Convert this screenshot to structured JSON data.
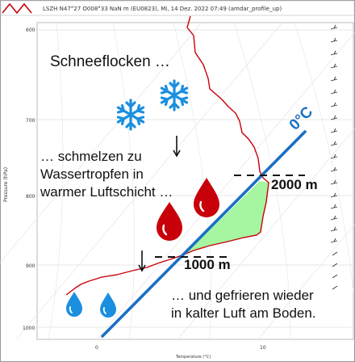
{
  "header": {
    "title": "LSZH N47°27 O008°33 NaN m (EU0823), Mi, 14 Dez. 2022 07:49 (amdar_profile_up)"
  },
  "axes": {
    "ylabel": "Pressure (hPa)",
    "xlabel": "Temperature (°C)",
    "y_ticks": [
      "600",
      "700",
      "800",
      "900",
      "1000"
    ],
    "x_ticks": [
      "0",
      "10"
    ]
  },
  "annotations": {
    "snowflakes": "Schneeflocken …",
    "melt_line1": "… schmelzen zu",
    "melt_line2": "Wassertropfen in",
    "melt_line3": "warmer Luftschicht …",
    "refreeze_line1": "… und gefrieren wieder",
    "refreeze_line2": "in kalter Luft am Boden.",
    "upper_level": "2000 m",
    "lower_level": "1000 m",
    "isotherm_label": "0°C"
  },
  "colors": {
    "profile": "#c8000a",
    "isotherm": "#1a6fc4",
    "warm_layer": "#a6f5a0",
    "snowflake": "#1a8fe0",
    "raindrop": "#c8000a",
    "freezing_drop": "#1a8fe0"
  },
  "icons": [
    "snowflake-icon",
    "snowflake-icon",
    "raindrop-icon",
    "raindrop-icon",
    "water-drop-icon",
    "water-drop-icon",
    "arrow-down-icon",
    "arrow-down-icon",
    "wind-barb-icon"
  ]
}
